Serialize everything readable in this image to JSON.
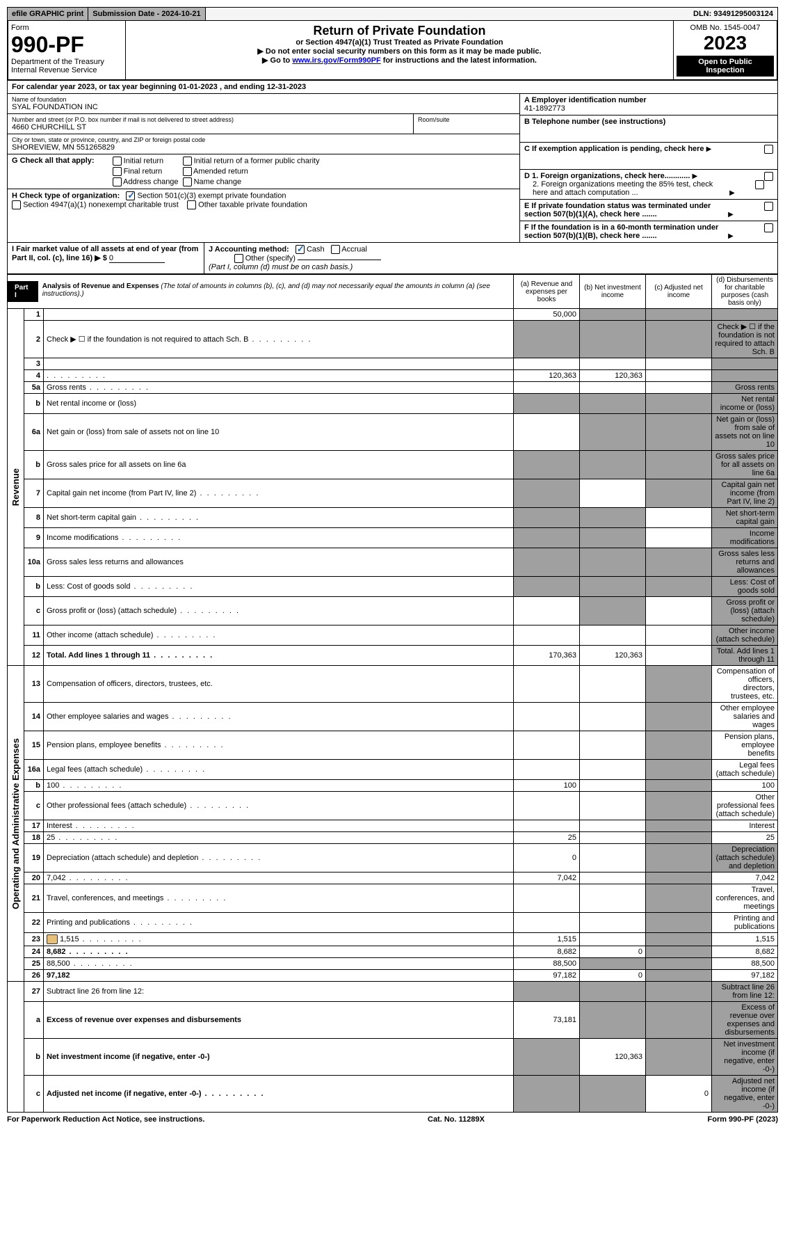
{
  "top_bar": {
    "efile": "efile GRAPHIC print",
    "submission_label": "Submission Date - 2024-10-21",
    "dln": "DLN: 93491295003124"
  },
  "header": {
    "form_label": "Form",
    "form_number": "990-PF",
    "dept": "Department of the Treasury",
    "irs": "Internal Revenue Service",
    "title": "Return of Private Foundation",
    "subtitle": "or Section 4947(a)(1) Trust Treated as Private Foundation",
    "instr1": "▶ Do not enter social security numbers on this form as it may be made public.",
    "instr2_pre": "▶ Go to ",
    "instr2_link": "www.irs.gov/Form990PF",
    "instr2_post": " for instructions and the latest information.",
    "omb": "OMB No. 1545-0047",
    "year": "2023",
    "open": "Open to Public Inspection"
  },
  "cal_year": "For calendar year 2023, or tax year beginning 01-01-2023              , and ending 12-31-2023",
  "entity": {
    "name_label": "Name of foundation",
    "name": "SYAL FOUNDATION INC",
    "addr_label": "Number and street (or P.O. box number if mail is not delivered to street address)",
    "addr": "4660 CHURCHILL ST",
    "room_label": "Room/suite",
    "city_label": "City or town, state or province, country, and ZIP or foreign postal code",
    "city": "SHOREVIEW, MN 551265829"
  },
  "right_info": {
    "a_label": "A Employer identification number",
    "a_val": "41-1892773",
    "b_label": "B Telephone number (see instructions)",
    "c_label": "C If exemption application is pending, check here",
    "d1_label": "D 1. Foreign organizations, check here............",
    "d2_label": "2. Foreign organizations meeting the 85% test, check here and attach computation ...",
    "e_label": "E If private foundation status was terminated under section 507(b)(1)(A), check here .......",
    "f_label": "F If the foundation is in a 60-month termination under section 507(b)(1)(B), check here ......."
  },
  "section_g": {
    "label": "G Check all that apply:",
    "opts": [
      "Initial return",
      "Final return",
      "Address change",
      "Initial return of a former public charity",
      "Amended return",
      "Name change"
    ]
  },
  "section_h": {
    "label": "H Check type of organization:",
    "opt1": "Section 501(c)(3) exempt private foundation",
    "opt2": "Section 4947(a)(1) nonexempt charitable trust",
    "opt3": "Other taxable private foundation"
  },
  "section_i": {
    "label": "I Fair market value of all assets at end of year (from Part II, col. (c), line 16) ▶ $",
    "value": "0"
  },
  "section_j": {
    "label": "J Accounting method:",
    "cash": "Cash",
    "accrual": "Accrual",
    "other": "Other (specify)",
    "note": "(Part I, column (d) must be on cash basis.)"
  },
  "part1": {
    "label": "Part I",
    "title": "Analysis of Revenue and Expenses",
    "note": "(The total of amounts in columns (b), (c), and (d) may not necessarily equal the amounts in column (a) (see instructions).)",
    "col_a": "(a) Revenue and expenses per books",
    "col_b": "(b) Net investment income",
    "col_c": "(c) Adjusted net income",
    "col_d": "(d) Disbursements for charitable purposes (cash basis only)"
  },
  "side_labels": {
    "revenue": "Revenue",
    "expenses": "Operating and Administrative Expenses"
  },
  "rows": [
    {
      "n": "1",
      "d": "",
      "a": "50,000",
      "b": "",
      "c": "",
      "shade": [
        "b",
        "c",
        "d"
      ]
    },
    {
      "n": "2",
      "d": "Check ▶ ☐ if the foundation is not required to attach Sch. B",
      "dots": true,
      "shade": [
        "a",
        "b",
        "c",
        "d"
      ]
    },
    {
      "n": "3",
      "d": "",
      "a": "",
      "b": "",
      "c": "",
      "shade": [
        "d"
      ]
    },
    {
      "n": "4",
      "d": "",
      "dots": true,
      "a": "120,363",
      "b": "120,363",
      "c": "",
      "shade": [
        "d"
      ]
    },
    {
      "n": "5a",
      "d": "Gross rents",
      "dots": true,
      "shade": [
        "d"
      ]
    },
    {
      "n": "b",
      "d": "Net rental income or (loss)",
      "shade": [
        "a",
        "b",
        "c",
        "d"
      ]
    },
    {
      "n": "6a",
      "d": "Net gain or (loss) from sale of assets not on line 10",
      "shade": [
        "b",
        "c",
        "d"
      ]
    },
    {
      "n": "b",
      "d": "Gross sales price for all assets on line 6a",
      "shade": [
        "a",
        "b",
        "c",
        "d"
      ]
    },
    {
      "n": "7",
      "d": "Capital gain net income (from Part IV, line 2)",
      "dots": true,
      "shade": [
        "a",
        "c",
        "d"
      ]
    },
    {
      "n": "8",
      "d": "Net short-term capital gain",
      "dots": true,
      "shade": [
        "a",
        "b",
        "d"
      ]
    },
    {
      "n": "9",
      "d": "Income modifications",
      "dots": true,
      "shade": [
        "a",
        "b",
        "d"
      ]
    },
    {
      "n": "10a",
      "d": "Gross sales less returns and allowances",
      "shade": [
        "a",
        "b",
        "c",
        "d"
      ]
    },
    {
      "n": "b",
      "d": "Less: Cost of goods sold",
      "dots": true,
      "shade": [
        "a",
        "b",
        "c",
        "d"
      ]
    },
    {
      "n": "c",
      "d": "Gross profit or (loss) (attach schedule)",
      "dots": true,
      "shade": [
        "b",
        "d"
      ]
    },
    {
      "n": "11",
      "d": "Other income (attach schedule)",
      "dots": true,
      "shade": [
        "d"
      ]
    },
    {
      "n": "12",
      "d": "Total. Add lines 1 through 11",
      "dots": true,
      "bold": true,
      "a": "170,363",
      "b": "120,363",
      "shade": [
        "d"
      ]
    },
    {
      "n": "13",
      "d": "Compensation of officers, directors, trustees, etc.",
      "shade": [
        "c"
      ]
    },
    {
      "n": "14",
      "d": "Other employee salaries and wages",
      "dots": true,
      "shade": [
        "c"
      ]
    },
    {
      "n": "15",
      "d": "Pension plans, employee benefits",
      "dots": true,
      "shade": [
        "c"
      ]
    },
    {
      "n": "16a",
      "d": "Legal fees (attach schedule)",
      "dots": true,
      "shade": [
        "c"
      ]
    },
    {
      "n": "b",
      "d": "100",
      "dots": true,
      "a": "100",
      "shade": [
        "c"
      ]
    },
    {
      "n": "c",
      "d": "Other professional fees (attach schedule)",
      "dots": true,
      "shade": [
        "c"
      ]
    },
    {
      "n": "17",
      "d": "Interest",
      "dots": true,
      "shade": [
        "c"
      ]
    },
    {
      "n": "18",
      "d": "25",
      "dots": true,
      "a": "25",
      "shade": [
        "c"
      ]
    },
    {
      "n": "19",
      "d": "Depreciation (attach schedule) and depletion",
      "dots": true,
      "a": "0",
      "shade": [
        "c",
        "d"
      ]
    },
    {
      "n": "20",
      "d": "7,042",
      "dots": true,
      "a": "7,042",
      "shade": [
        "c"
      ]
    },
    {
      "n": "21",
      "d": "Travel, conferences, and meetings",
      "dots": true,
      "shade": [
        "c"
      ]
    },
    {
      "n": "22",
      "d": "Printing and publications",
      "dots": true,
      "shade": [
        "c"
      ]
    },
    {
      "n": "23",
      "d": "1,515",
      "dots": true,
      "a": "1,515",
      "icon": true,
      "shade": [
        "c"
      ]
    },
    {
      "n": "24",
      "d": "8,682",
      "dots": true,
      "bold": true,
      "a": "8,682",
      "b": "0",
      "shade": [
        "c"
      ]
    },
    {
      "n": "25",
      "d": "88,500",
      "dots": true,
      "a": "88,500",
      "shade": [
        "b",
        "c"
      ]
    },
    {
      "n": "26",
      "d": "97,182",
      "bold": true,
      "a": "97,182",
      "b": "0",
      "shade": [
        "c"
      ]
    },
    {
      "n": "27",
      "d": "Subtract line 26 from line 12:",
      "shade": [
        "a",
        "b",
        "c",
        "d"
      ]
    },
    {
      "n": "a",
      "d": "Excess of revenue over expenses and disbursements",
      "bold": true,
      "a": "73,181",
      "shade": [
        "b",
        "c",
        "d"
      ]
    },
    {
      "n": "b",
      "d": "Net investment income (if negative, enter -0-)",
      "bold": true,
      "b": "120,363",
      "shade": [
        "a",
        "c",
        "d"
      ]
    },
    {
      "n": "c",
      "d": "Adjusted net income (if negative, enter -0-)",
      "bold": true,
      "dots": true,
      "c": "0",
      "shade": [
        "a",
        "b",
        "d"
      ]
    }
  ],
  "footer": {
    "left": "For Paperwork Reduction Act Notice, see instructions.",
    "center": "Cat. No. 11289X",
    "right": "Form 990-PF (2023)"
  }
}
